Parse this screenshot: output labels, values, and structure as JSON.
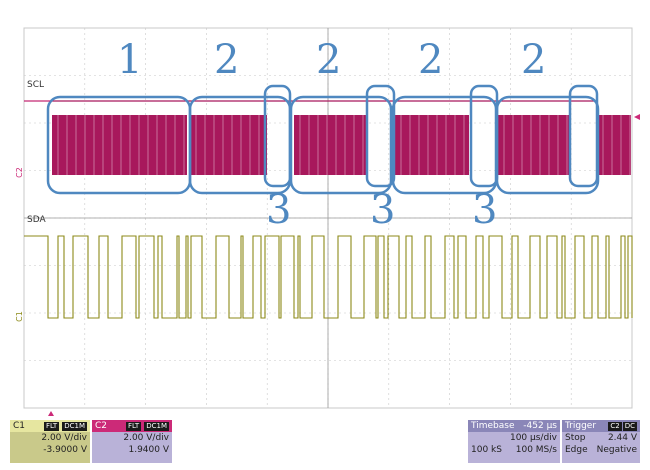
{
  "channels": {
    "scl_label": "SCL",
    "sda_label": "SDA",
    "c2_side": "C2",
    "c1_side": "C1"
  },
  "segments": {
    "top": [
      "1",
      "2",
      "2",
      "2",
      "2"
    ],
    "bottom": [
      "3",
      "3",
      "3"
    ]
  },
  "c1": {
    "name": "C1",
    "tag1": "FLT",
    "tag2": "DC1M",
    "scale": "2.00 V/div",
    "offset": "-3.9000 V"
  },
  "c2": {
    "name": "C2",
    "tag1": "FLT",
    "tag2": "DC1M",
    "scale": "2.00 V/div",
    "offset": "1.9400 V"
  },
  "timebase": {
    "label": "Timebase",
    "value": "-452 µs",
    "div": "100 µs/div",
    "samples": "100 kS",
    "rate": "100 MS/s"
  },
  "trigger": {
    "label": "Trigger",
    "source": "C2",
    "coupling": "DC",
    "mode": "Stop",
    "level": "2.44 V",
    "type": "Edge",
    "slope": "Negative"
  },
  "colors": {
    "scl": "#a8185c",
    "sda": "#8c8a18",
    "annotation": "#4f88c0",
    "grid": "#c8c8c8"
  }
}
